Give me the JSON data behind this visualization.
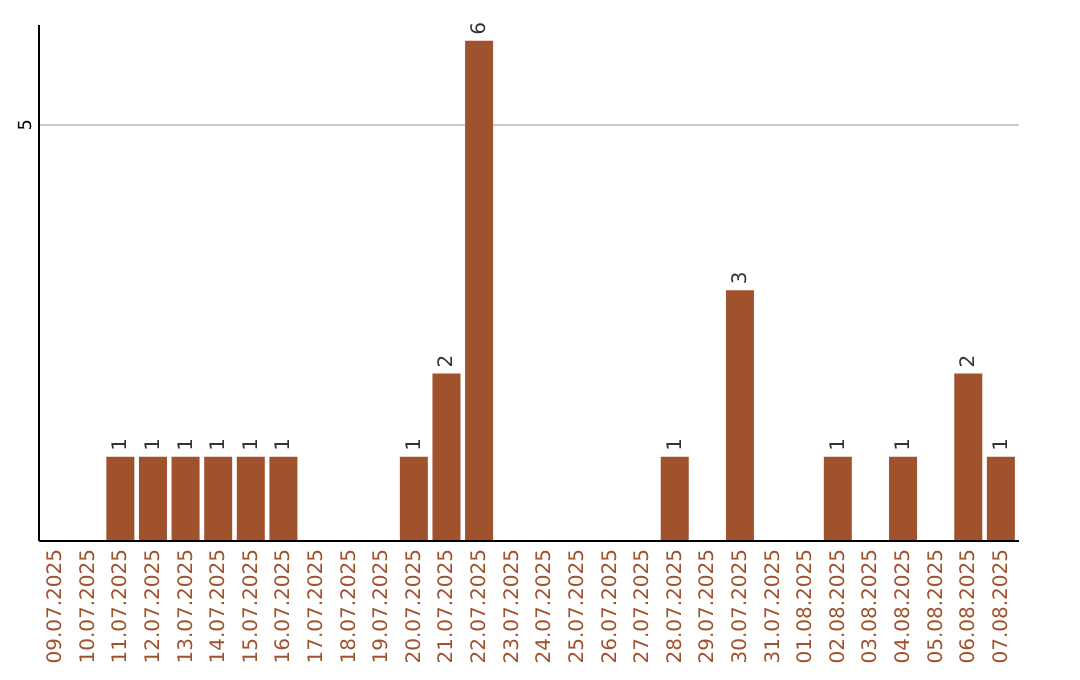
{
  "chart_data": {
    "type": "bar",
    "categories": [
      "09.07.2025",
      "10.07.2025",
      "11.07.2025",
      "12.07.2025",
      "13.07.2025",
      "14.07.2025",
      "15.07.2025",
      "16.07.2025",
      "17.07.2025",
      "18.07.2025",
      "19.07.2025",
      "20.07.2025",
      "21.07.2025",
      "22.07.2025",
      "23.07.2025",
      "24.07.2025",
      "25.07.2025",
      "26.07.2025",
      "27.07.2025",
      "28.07.2025",
      "29.07.2025",
      "30.07.2025",
      "31.07.2025",
      "01.08.2025",
      "02.08.2025",
      "03.08.2025",
      "04.08.2025",
      "05.08.2025",
      "06.08.2025",
      "07.08.2025"
    ],
    "values": [
      0,
      0,
      1,
      1,
      1,
      1,
      1,
      1,
      0,
      0,
      0,
      1,
      2,
      6,
      0,
      0,
      0,
      0,
      0,
      1,
      0,
      3,
      0,
      0,
      1,
      0,
      1,
      0,
      2,
      1
    ],
    "value_labels": [
      null,
      null,
      "1",
      "1",
      "1",
      "1",
      "1",
      "1",
      null,
      null,
      null,
      "1",
      "2",
      "6",
      null,
      null,
      null,
      null,
      null,
      "1",
      null,
      "3",
      null,
      null,
      "1",
      null,
      "1",
      null,
      "2",
      "1"
    ],
    "color": "#a0522d",
    "ylim": [
      0,
      6.2
    ],
    "yticks": [
      5
    ],
    "grid": "y"
  }
}
